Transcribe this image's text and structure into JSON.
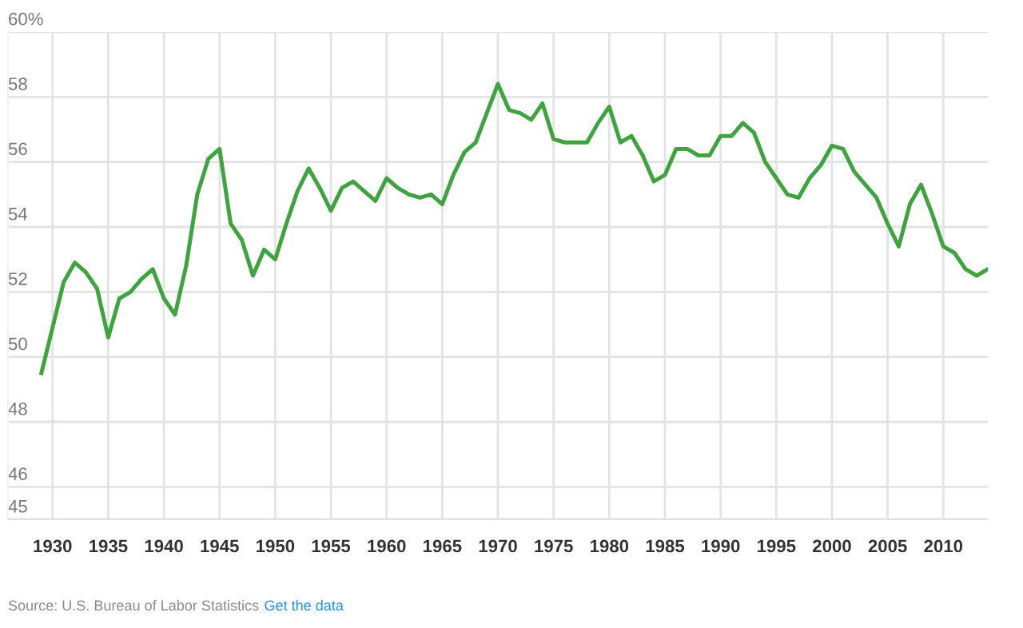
{
  "chart_data": {
    "type": "line",
    "x": [
      1929,
      1930,
      1931,
      1932,
      1933,
      1934,
      1935,
      1936,
      1937,
      1938,
      1939,
      1940,
      1941,
      1942,
      1943,
      1944,
      1945,
      1946,
      1947,
      1948,
      1949,
      1950,
      1951,
      1952,
      1953,
      1954,
      1955,
      1956,
      1957,
      1958,
      1959,
      1960,
      1961,
      1962,
      1963,
      1964,
      1965,
      1966,
      1967,
      1968,
      1969,
      1970,
      1971,
      1972,
      1973,
      1974,
      1975,
      1976,
      1977,
      1978,
      1979,
      1980,
      1981,
      1982,
      1983,
      1984,
      1985,
      1986,
      1987,
      1988,
      1989,
      1990,
      1991,
      1992,
      1993,
      1994,
      1995,
      1996,
      1997,
      1998,
      1999,
      2000,
      2001,
      2002,
      2003,
      2004,
      2005,
      2006,
      2007,
      2008,
      2009,
      2010,
      2011,
      2012,
      2013,
      2014
    ],
    "series": [
      {
        "color": "#3fa33f",
        "values": [
          49.5,
          50.9,
          52.3,
          52.9,
          52.6,
          52.1,
          50.6,
          51.8,
          52.0,
          52.4,
          52.7,
          51.8,
          51.3,
          52.8,
          55.0,
          56.1,
          56.4,
          54.1,
          53.6,
          52.5,
          53.3,
          53.0,
          54.1,
          55.1,
          55.8,
          55.2,
          54.5,
          55.2,
          55.4,
          55.1,
          54.8,
          55.5,
          55.2,
          55.0,
          54.9,
          55.0,
          54.7,
          55.6,
          56.3,
          56.6,
          57.5,
          58.4,
          57.6,
          57.5,
          57.3,
          57.8,
          56.7,
          56.6,
          56.6,
          56.6,
          57.2,
          57.7,
          56.6,
          56.8,
          56.2,
          55.4,
          55.6,
          56.4,
          56.4,
          56.2,
          56.2,
          56.8,
          56.8,
          57.2,
          56.9,
          56.0,
          55.5,
          55.0,
          54.9,
          55.5,
          55.9,
          56.5,
          56.4,
          55.7,
          55.3,
          54.9,
          54.1,
          53.4,
          54.7,
          55.3,
          54.4,
          53.4,
          53.2,
          52.7,
          52.5,
          52.7
        ]
      }
    ],
    "xlim": [
      1926,
      2014
    ],
    "xticks": [
      1930,
      1935,
      1940,
      1945,
      1950,
      1955,
      1960,
      1965,
      1970,
      1975,
      1980,
      1985,
      1990,
      1995,
      2000,
      2005,
      2010
    ],
    "ylim": [
      45,
      60
    ],
    "yticks": [
      45,
      46,
      48,
      50,
      52,
      54,
      56,
      58,
      {
        "value": 60,
        "label": "60%"
      }
    ],
    "grid": true,
    "legend": false,
    "marker": "none",
    "line_style": "solid",
    "annotations": [
      "Source: U.S. Bureau of Labor Statistics",
      "Get the data"
    ]
  }
}
